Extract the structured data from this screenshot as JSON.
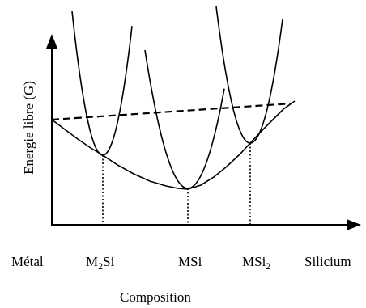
{
  "figure": {
    "y_axis_label": "Energie libre (G)",
    "x_axis_label": "Composition",
    "x_ticks": {
      "metal": "Métal",
      "m2si": {
        "base": "M",
        "sub": "2",
        "tail": "Si"
      },
      "msi": "MSi",
      "msi2": {
        "base": "MSi",
        "sub": "2"
      },
      "silicium": "Silicium"
    }
  },
  "curves": [
    {
      "name": "M2Si",
      "kind": "parabola"
    },
    {
      "name": "MSi",
      "kind": "parabola"
    },
    {
      "name": "MSi2",
      "kind": "parabola"
    },
    {
      "name": "common-tangent",
      "kind": "solid-envelope"
    },
    {
      "name": "dashed-reference",
      "kind": "dashed-line"
    }
  ]
}
